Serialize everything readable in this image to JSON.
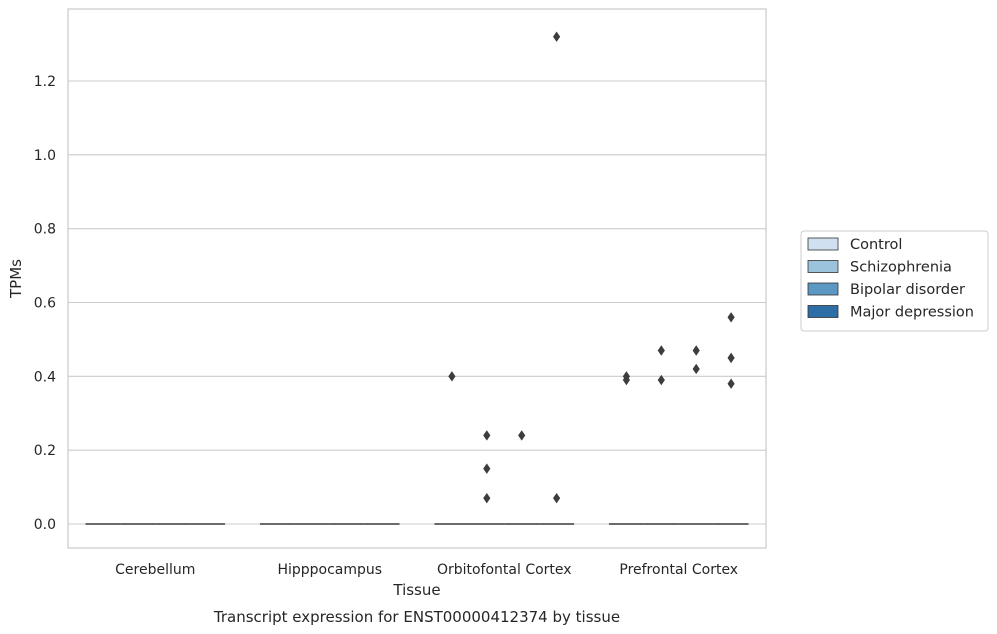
{
  "chart_data": {
    "type": "box",
    "title": "Transcript expression for ENST00000412374 by tissue",
    "xlabel": "Tissue",
    "ylabel": "TPMs",
    "categories": [
      "Cerebellum",
      "Hipppocampus",
      "Orbitofontal Cortex",
      "Prefrontal Cortex"
    ],
    "ylim": [
      -0.065,
      1.395
    ],
    "yticks": [
      0.0,
      0.2,
      0.4,
      0.6,
      0.8,
      1.0,
      1.2
    ],
    "ytick_labels": [
      "0.0",
      "0.2",
      "0.4",
      "0.6",
      "0.8",
      "1.0",
      "1.2"
    ],
    "grid": true,
    "legend_position": "right",
    "series": [
      {
        "name": "Control",
        "color": "#d1e0f0"
      },
      {
        "name": "Schizophrenia",
        "color": "#9cc3dc"
      },
      {
        "name": "Bipolar disorder",
        "color": "#5b99c4"
      },
      {
        "name": "Major depression",
        "color": "#2e6ea6"
      }
    ],
    "medians": [
      {
        "category": "Cerebellum",
        "value": 0.0
      },
      {
        "category": "Hipppocampus",
        "value": 0.0
      },
      {
        "category": "Orbitofontal Cortex",
        "value": 0.0
      },
      {
        "category": "Prefrontal Cortex",
        "value": 0.0
      }
    ],
    "outliers": [
      {
        "category": "Orbitofontal Cortex",
        "series": "Control",
        "values": [
          0.4
        ]
      },
      {
        "category": "Orbitofontal Cortex",
        "series": "Schizophrenia",
        "values": [
          0.24,
          0.15,
          0.07
        ]
      },
      {
        "category": "Orbitofontal Cortex",
        "series": "Bipolar disorder",
        "values": [
          0.24
        ]
      },
      {
        "category": "Orbitofontal Cortex",
        "series": "Major depression",
        "values": [
          1.32,
          0.07
        ]
      },
      {
        "category": "Prefrontal Cortex",
        "series": "Control",
        "values": [
          0.4,
          0.39
        ]
      },
      {
        "category": "Prefrontal Cortex",
        "series": "Schizophrenia",
        "values": [
          0.47,
          0.39
        ]
      },
      {
        "category": "Prefrontal Cortex",
        "series": "Bipolar disorder",
        "values": [
          0.47,
          0.42
        ]
      },
      {
        "category": "Prefrontal Cortex",
        "series": "Major depression",
        "values": [
          0.56,
          0.45,
          0.38
        ]
      }
    ]
  }
}
